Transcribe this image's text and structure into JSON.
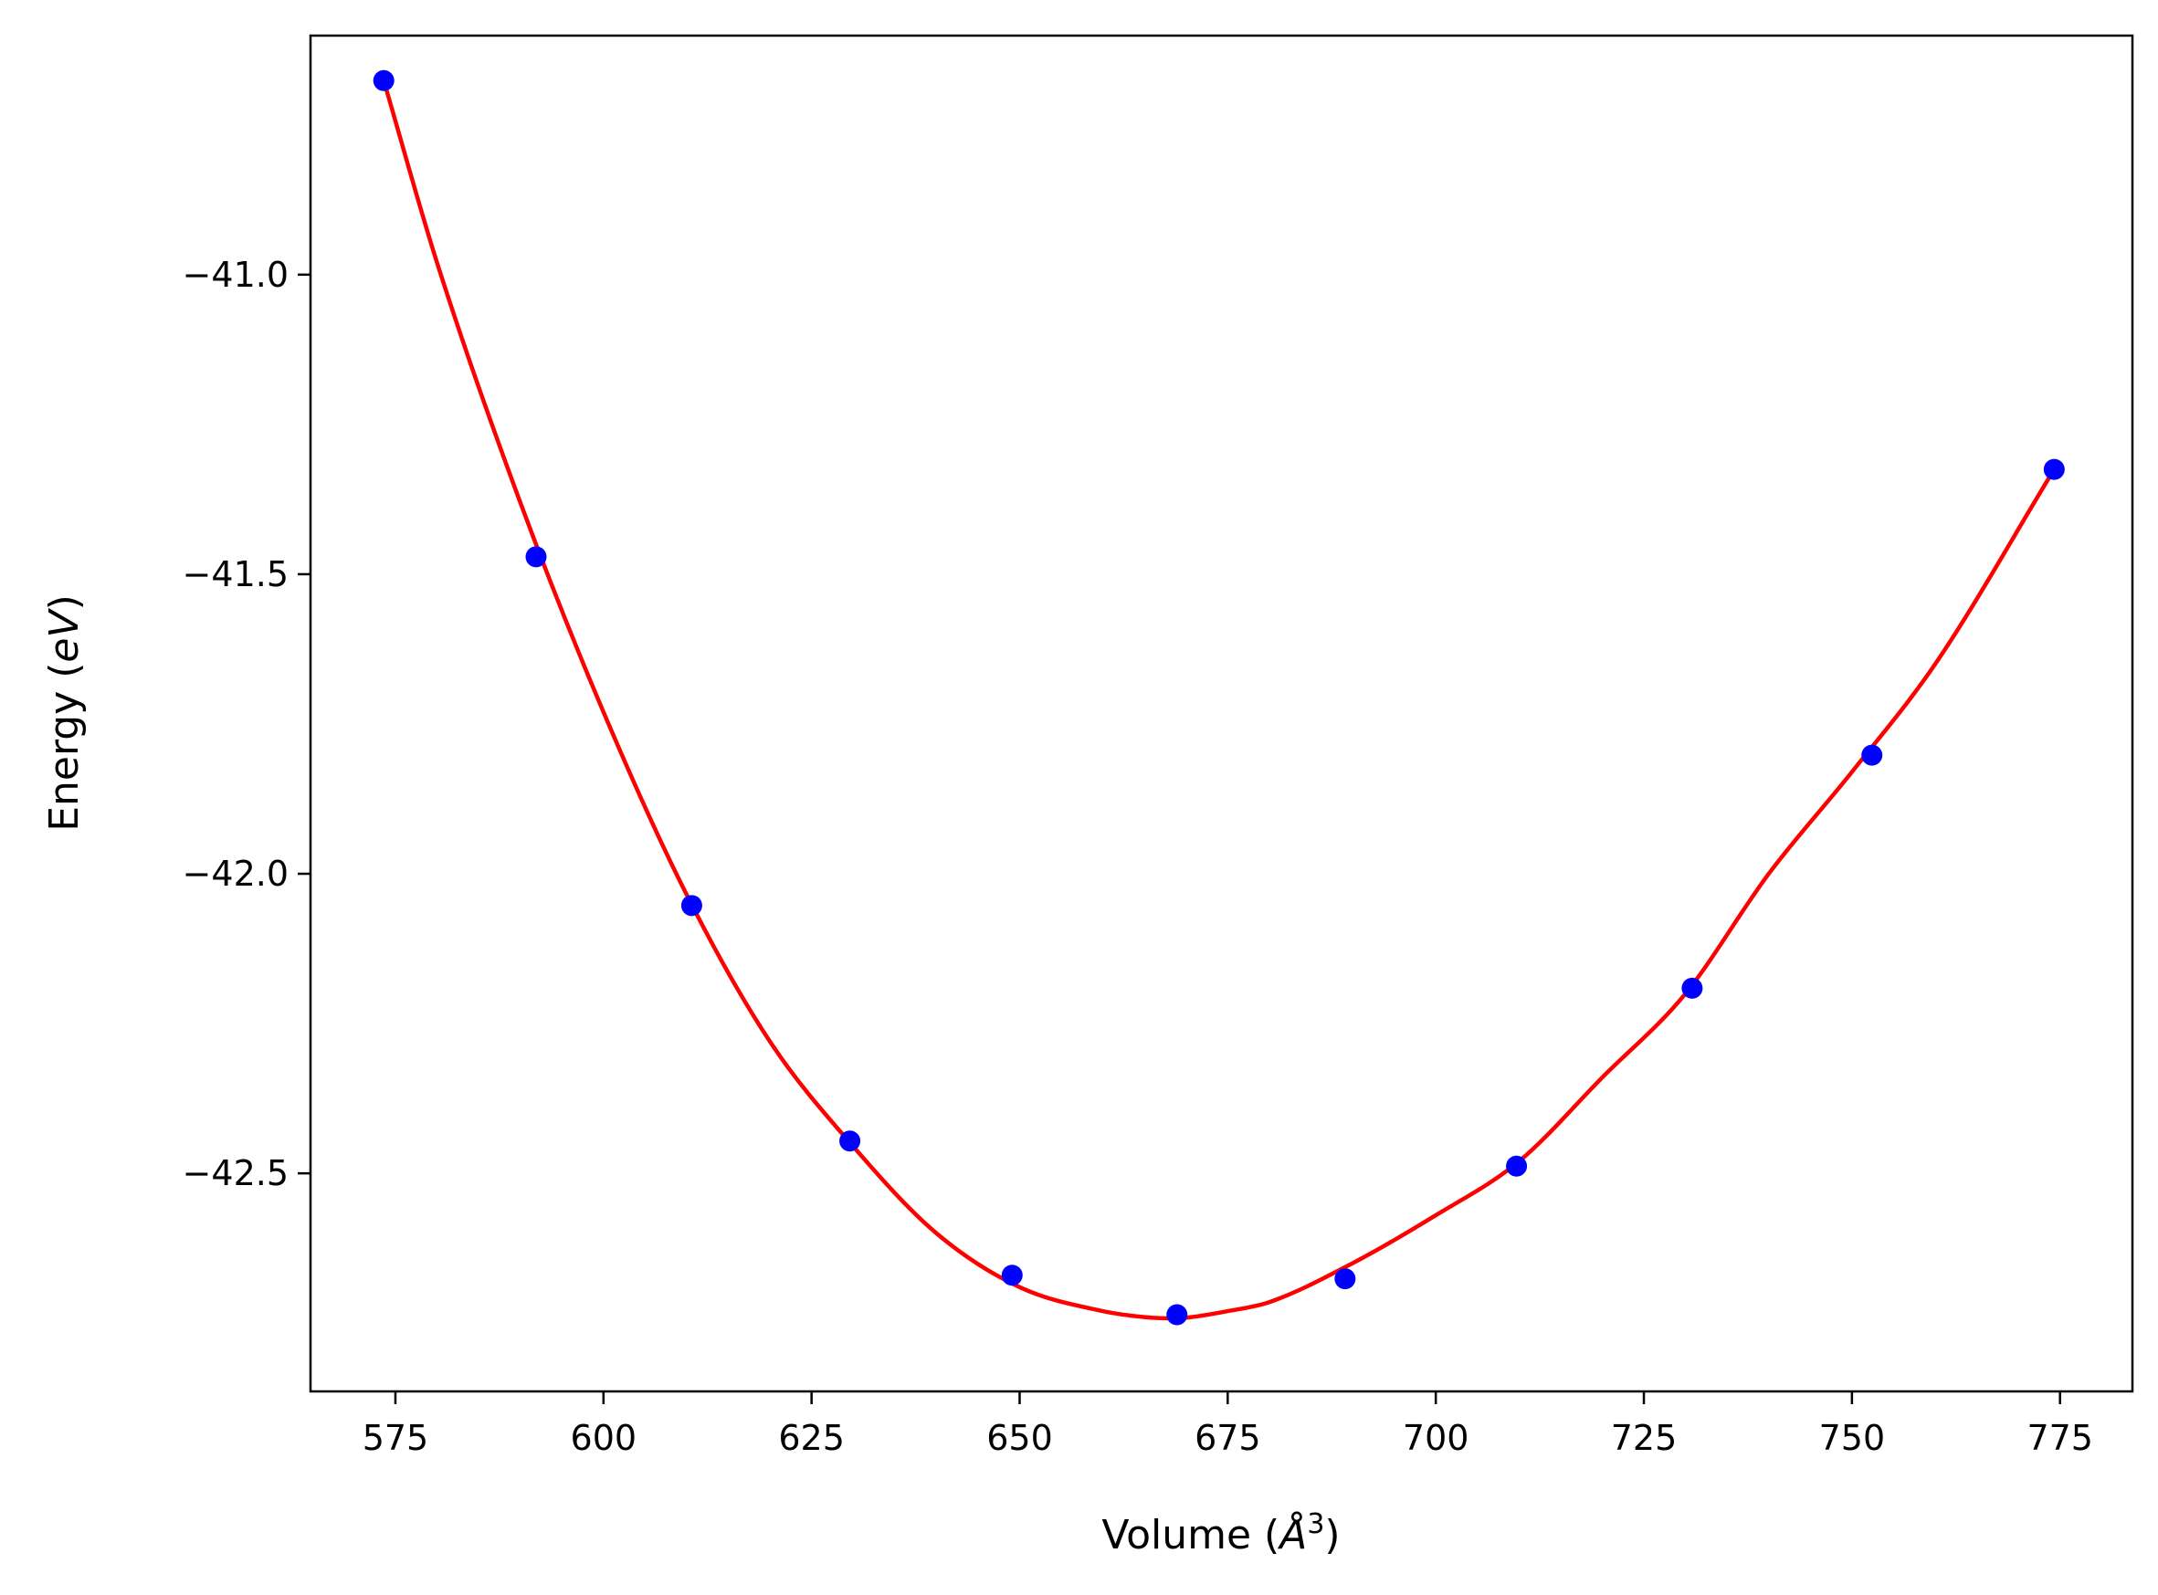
{
  "chart_data": {
    "type": "scatter",
    "title": "",
    "xlabel": {
      "prefix": "Volume (",
      "symbol": "Å",
      "sup": "3",
      "suffix": ")"
    },
    "ylabel": {
      "prefix": "Energy (",
      "italic": "eV",
      "suffix": ")"
    },
    "xlim": [
      564.8,
      783.7
    ],
    "ylim": [
      -42.864,
      -40.601
    ],
    "x_ticks": [
      575,
      600,
      625,
      650,
      675,
      700,
      725,
      750,
      775
    ],
    "x_tick_labels": [
      "575",
      "600",
      "625",
      "650",
      "675",
      "700",
      "725",
      "750",
      "775"
    ],
    "y_ticks": [
      -41.0,
      -41.5,
      -42.0,
      -42.5
    ],
    "y_tick_labels": [
      "−41.0",
      "−41.5",
      "−42.0",
      "−42.5"
    ],
    "grid": false,
    "series": [
      {
        "kind": "points",
        "color": "#0000ff",
        "x": [
          573.6,
          591.9,
          610.6,
          629.6,
          649.1,
          668.9,
          689.1,
          709.7,
          730.8,
          752.4,
          774.3
        ],
        "y": [
          -40.676,
          -41.471,
          -42.053,
          -42.446,
          -42.67,
          -42.736,
          -42.676,
          -42.488,
          -42.191,
          -41.802,
          -41.325
        ]
      },
      {
        "kind": "fit-curve",
        "color": "#ff0000",
        "x": [
          573.6,
          580,
          590,
          600,
          610,
          620,
          630,
          640,
          650,
          660,
          665,
          668,
          670,
          675,
          680,
          690,
          700,
          710,
          720,
          730,
          740,
          750,
          760,
          774.3
        ],
        "y": [
          -40.676,
          -40.98,
          -41.38,
          -41.73,
          -42.035,
          -42.28,
          -42.455,
          -42.6,
          -42.69,
          -42.73,
          -42.74,
          -42.742,
          -42.741,
          -42.73,
          -42.715,
          -42.65,
          -42.57,
          -42.48,
          -42.34,
          -42.2,
          -42.0,
          -41.83,
          -41.65,
          -41.325
        ]
      }
    ]
  }
}
